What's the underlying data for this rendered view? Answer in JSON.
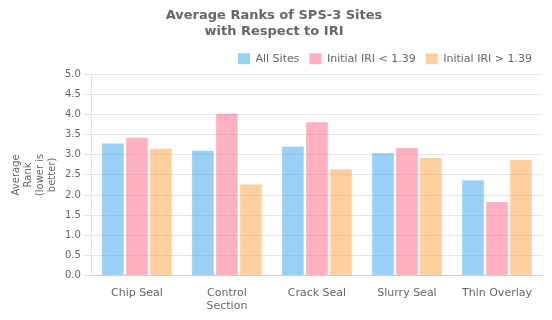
{
  "chart_data": {
    "type": "bar",
    "title": "Average Ranks of SPS-3 Sites\nwith Respect to IRI",
    "ylabel": "Average\nRank\n(lower is\nbetter)",
    "categories": [
      "Chip Seal",
      "Control\nSection",
      "Crack Seal",
      "Slurry Seal",
      "Thin Overlay"
    ],
    "series": [
      {
        "name": "All Sites",
        "values": [
          3.28,
          3.1,
          3.2,
          3.04,
          2.37
        ]
      },
      {
        "name": "Initial IRI < 1.39",
        "values": [
          3.42,
          4.02,
          3.81,
          3.17,
          1.83
        ]
      },
      {
        "name": "Initial IRI > 1.39",
        "values": [
          3.15,
          2.26,
          2.64,
          2.92,
          2.87
        ]
      }
    ],
    "ylim": [
      0,
      5
    ],
    "yticks": [
      {
        "value": 0,
        "label": "0.0"
      },
      0.5,
      {
        "value": 1,
        "label": "1.0"
      },
      1.5,
      {
        "value": 2,
        "label": "2.0"
      },
      2.5,
      {
        "value": 3,
        "label": "3.0"
      },
      3.5,
      {
        "value": 4,
        "label": "4.0"
      },
      4.5,
      {
        "value": 5,
        "label": "5.0"
      }
    ],
    "grid": true,
    "legend": "upper right"
  }
}
